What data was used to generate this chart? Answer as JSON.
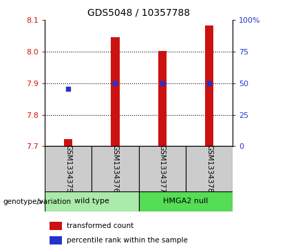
{
  "title": "GDS5048 / 10357788",
  "samples": [
    "GSM1334375",
    "GSM1334376",
    "GSM1334377",
    "GSM1334378"
  ],
  "red_bar_values": [
    7.723,
    8.045,
    8.002,
    8.082
  ],
  "blue_square_values": [
    7.882,
    7.9,
    7.9,
    7.9
  ],
  "ymin": 7.7,
  "ymax": 8.1,
  "yticks_left": [
    7.7,
    7.8,
    7.9,
    8.0,
    8.1
  ],
  "yticks_right": [
    0,
    25,
    50,
    75,
    100
  ],
  "bar_color": "#cc1111",
  "square_color": "#2233cc",
  "bar_width": 0.18,
  "background_label": "#cccccc",
  "group_wt_color": "#aaeaaa",
  "group_hmga_color": "#55dd55",
  "left_axis_color": "#cc1111",
  "right_axis_color": "#2233cc",
  "group_labels": [
    "wild type",
    "HMGA2 null"
  ],
  "group_wt_indices": [
    0,
    1
  ],
  "group_hmga_indices": [
    2,
    3
  ]
}
